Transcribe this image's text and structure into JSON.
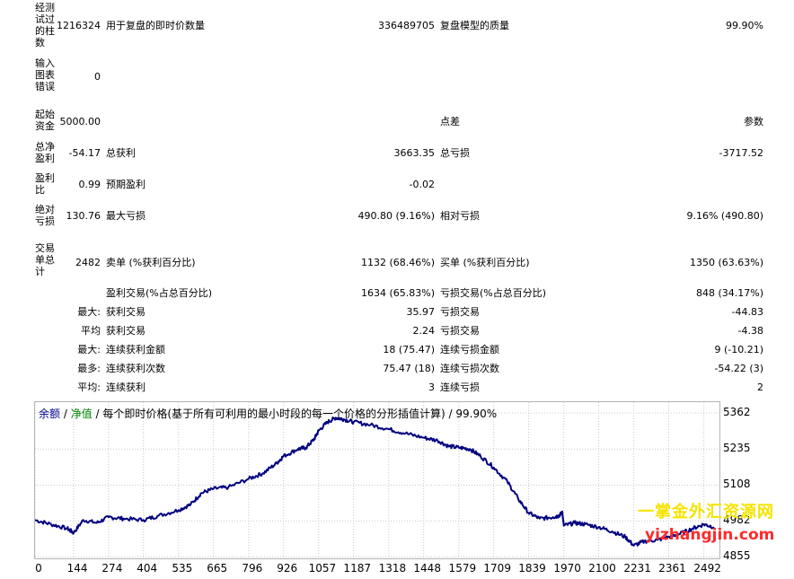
{
  "report": {
    "bars_label": "经测试过的柱数",
    "bars_value": "1216324",
    "ticks_label": "用于复盘的即时价数量",
    "ticks_value": "336489705",
    "quality_label": "复盘模型的质量",
    "quality_value": "99.90%",
    "errors_label": "输入图表错误",
    "errors_value": "0",
    "deposit_label": "起始资金",
    "deposit_value": "5000.00",
    "spread_label": "点差",
    "spread_value": "参数",
    "net_profit_label": "总净盈利",
    "net_profit_value": "-54.17",
    "gross_profit_label": "总获利",
    "gross_profit_value": "3663.35",
    "gross_loss_label": "总亏损",
    "gross_loss_value": "-3717.52",
    "profit_factor_label": "盈利比",
    "profit_factor_value": "0.99",
    "expected_payoff_label": "预期盈利",
    "expected_payoff_value": "-0.02",
    "abs_drawdown_label": "绝对亏损",
    "abs_drawdown_value": "130.76",
    "max_drawdown_label": "最大亏损",
    "max_drawdown_value": "490.80 (9.16%)",
    "rel_drawdown_label": "相对亏损",
    "rel_drawdown_value": "9.16% (490.80)",
    "total_trades_label": "交易单总计",
    "total_trades_value": "2482",
    "short_label": "卖单 (%获利百分比)",
    "short_value": "1132 (68.46%)",
    "long_label": "买单 (%获利百分比)",
    "long_value": "1350 (63.63%)",
    "win_trades_label": "盈利交易(%占总百分比)",
    "win_trades_value": "1634 (65.83%)",
    "loss_trades_label": "亏损交易(%占总百分比)",
    "loss_trades_value": "848 (34.17%)",
    "largest_prefix": "最大:",
    "largest_win_label": "获利交易",
    "largest_win_value": "35.97",
    "largest_loss_label": "亏损交易",
    "largest_loss_value": "-44.83",
    "average_prefix": "平均",
    "avg_win_label": "获利交易",
    "avg_win_value": "2.24",
    "avg_loss_label": "亏损交易",
    "avg_loss_value": "-4.38",
    "max_prefix": "最大:",
    "max_consec_win_amt_label": "连续获利金额",
    "max_consec_win_amt_value": "18 (75.47)",
    "max_consec_loss_amt_label": "连续亏损金额",
    "max_consec_loss_amt_value": "9 (-10.21)",
    "most_prefix": "最多:",
    "max_consec_win_count_label": "连续获利次数",
    "max_consec_win_count_value": "75.47 (18)",
    "max_consec_loss_count_label": "连续亏损次数",
    "max_consec_loss_count_value": "-54.22 (3)",
    "avg_prefix": "平均:",
    "avg_consec_win_label": "连续获利",
    "avg_consec_win_value": "3",
    "avg_consec_loss_label": "连续亏损",
    "avg_consec_loss_value": "2"
  },
  "chart_data": {
    "type": "line",
    "legend": {
      "balance": "余额",
      "sep1": " / ",
      "equity": "净值",
      "sep2": " / ",
      "description": "每个即时价格(基于所有可利用的最小时段的每一个价格的分形插值计算) / 99.90%"
    },
    "colors": {
      "line": "#000080",
      "balance_text": "#00008b",
      "equity_text": "#008000",
      "grid": "#c8c8c8"
    },
    "grid": true,
    "x_ticks": [
      0,
      144,
      274,
      404,
      535,
      665,
      796,
      926,
      1057,
      1187,
      1318,
      1448,
      1579,
      1709,
      1839,
      1970,
      2100,
      2231,
      2361,
      2492
    ],
    "y_ticks": [
      5362,
      5235,
      5108,
      4982,
      4855
    ],
    "xlim": [
      0,
      2550
    ],
    "ylim": [
      4850,
      5400
    ],
    "series": [
      {
        "x": [
          0,
          60,
          120,
          144,
          180,
          230,
          274,
          330,
          404,
          460,
          535,
          580,
          620,
          665,
          720,
          796,
          850,
          900,
          926,
          980,
          1010,
          1040,
          1057,
          1090,
          1120,
          1150,
          1187,
          1250,
          1318,
          1380,
          1448,
          1500,
          1540,
          1579,
          1620,
          1660,
          1709,
          1760,
          1800,
          1839,
          1880,
          1930,
          1950,
          1965,
          1970,
          2010,
          2050,
          2100,
          2150,
          2200,
          2231,
          2270,
          2320,
          2361,
          2400,
          2450,
          2492,
          2530
        ],
        "y": [
          4985,
          4970,
          4955,
          4940,
          4985,
          4975,
          4995,
          4990,
          4985,
          5000,
          5020,
          5040,
          5080,
          5095,
          5100,
          5130,
          5150,
          5185,
          5210,
          5235,
          5240,
          5270,
          5300,
          5330,
          5345,
          5340,
          5330,
          5320,
          5305,
          5290,
          5275,
          5265,
          5245,
          5240,
          5235,
          5210,
          5170,
          5120,
          5060,
          5010,
          4990,
          4995,
          5000,
          5010,
          4965,
          4975,
          4970,
          4960,
          4945,
          4925,
          4895,
          4910,
          4915,
          4925,
          4935,
          4955,
          4970,
          4960
        ]
      }
    ]
  },
  "watermark": {
    "line1": "一掌金外汇资源网",
    "line2": "yizhangjin.com",
    "colors": {
      "line1": "#f5e400",
      "line2": "#ff2a2a"
    }
  }
}
